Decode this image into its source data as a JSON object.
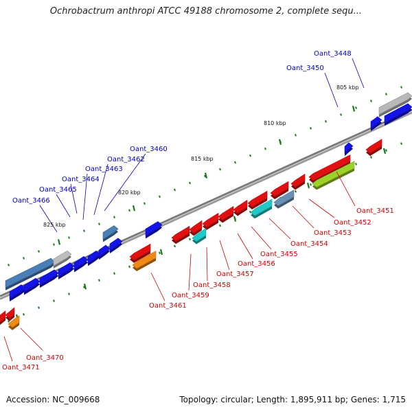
{
  "title": "Ochrobactrum anthropi ATCC 49188 chromosome 2, complete sequ...",
  "footer": {
    "accession": "Accession: NC_009668",
    "stats": "Topology: circular; Length: 1,895,911 bp; Genes: 1,715"
  },
  "colors": {
    "forward_label": "#0000c0",
    "reverse_label": "#cc0000",
    "backbone": "#7a7a7a",
    "tick": "#1a7a1a"
  },
  "scale_labels": [
    "805 kbp",
    "810 kbp",
    "815 kbp",
    "820 kbp",
    "825 kbp"
  ],
  "forward_gene_labels": [
    "Oant_3448",
    "Oant_3450",
    "Oant_3460",
    "Oant_3462",
    "Oant_3463",
    "Oant_3464",
    "Oant_3465",
    "Oant_3466"
  ],
  "reverse_gene_labels": [
    "Oant_3451",
    "Oant_3452",
    "Oant_3453",
    "Oant_3454",
    "Oant_3455",
    "Oant_3456",
    "Oant_3457",
    "Oant_3458",
    "Oant_3459",
    "Oant_3461",
    "Oant_3470",
    "Oant_3471"
  ]
}
